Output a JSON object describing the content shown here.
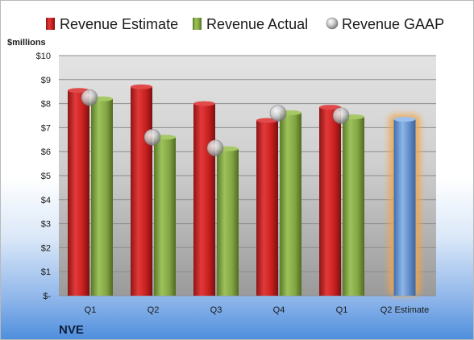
{
  "ticker": "NVE",
  "chart_data": {
    "type": "bar",
    "unit_label": "$millions",
    "categories": [
      "Q1",
      "Q2",
      "Q3",
      "Q4",
      "Q1",
      "Q2 Estimate"
    ],
    "series": [
      {
        "name": "Revenue Estimate",
        "kind": "bar",
        "color": "#d42a2a",
        "values": [
          8.55,
          8.7,
          8.0,
          7.3,
          7.85,
          null
        ]
      },
      {
        "name": "Revenue Actual",
        "kind": "bar",
        "color": "#8fb04c",
        "values": [
          8.2,
          6.6,
          6.12,
          7.62,
          7.45,
          null
        ]
      },
      {
        "name": "Revenue GAAP",
        "kind": "marker",
        "color": "#c8c8c8",
        "values": [
          8.25,
          6.6,
          6.15,
          7.6,
          7.5,
          null
        ]
      },
      {
        "name": "",
        "kind": "highlight-bar",
        "color": "#6f9fd8",
        "glow": "#f0a54a",
        "values": [
          null,
          null,
          null,
          null,
          null,
          7.35
        ]
      }
    ],
    "ylim": [
      0,
      10
    ],
    "yticks": [
      "$-",
      "$1",
      "$2",
      "$3",
      "$4",
      "$5",
      "$6",
      "$7",
      "$8",
      "$9",
      "$10"
    ],
    "grid": true,
    "legend_position": "top"
  }
}
